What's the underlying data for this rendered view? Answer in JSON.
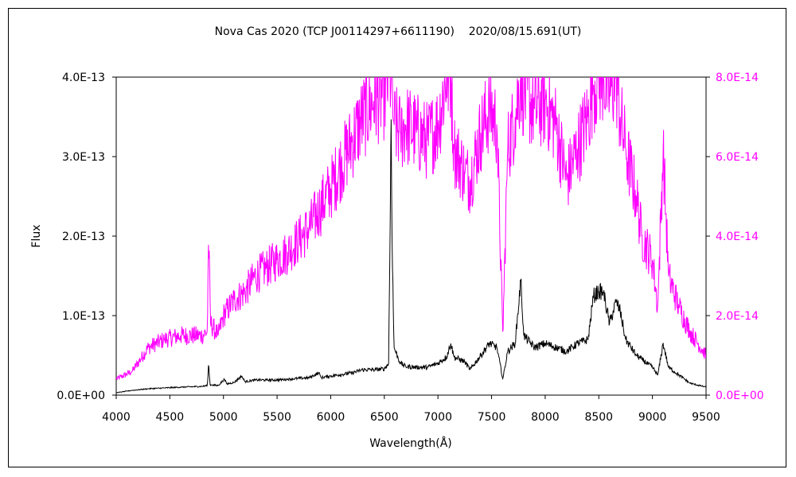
{
  "chart_data": {
    "type": "line",
    "title": "Nova Cas 2020 (TCP J00114297+6611190)    2020/08/15.691(UT)",
    "xlabel": "Wavelength(Å)",
    "ylabel": "Flux",
    "xlim": [
      4000,
      9500
    ],
    "ylim_left": [
      0,
      4e-13
    ],
    "ylim_right": [
      0,
      8e-14
    ],
    "x_ticks": [
      "4000",
      "4500",
      "5000",
      "5500",
      "6000",
      "6500",
      "7000",
      "7500",
      "8000",
      "8500",
      "9000",
      "9500"
    ],
    "y_ticks_left": [
      "0.0E+00",
      "1.0E-13",
      "2.0E-13",
      "3.0E-13",
      "4.0E-13"
    ],
    "y_ticks_right": [
      "0.0E+00",
      "2.0E-14",
      "4.0E-14",
      "6.0E-14",
      "8.0E-14"
    ],
    "grid": false,
    "legend": "none",
    "series": [
      {
        "axis": "left",
        "color": "#000000",
        "points": [
          [
            4000,
            3e-15
          ],
          [
            4150,
            6e-15
          ],
          [
            4300,
            8e-15
          ],
          [
            4450,
            9e-15
          ],
          [
            4600,
            1e-14
          ],
          [
            4800,
            1.1e-14
          ],
          [
            4850,
            1.2e-14
          ],
          [
            4861,
            4e-14
          ],
          [
            4875,
            1.3e-14
          ],
          [
            4950,
            1.2e-14
          ],
          [
            5010,
            2e-14
          ],
          [
            5030,
            1.4e-14
          ],
          [
            5100,
            1.6e-14
          ],
          [
            5170,
            2.4e-14
          ],
          [
            5200,
            1.7e-14
          ],
          [
            5300,
            1.9e-14
          ],
          [
            5400,
            1.9e-14
          ],
          [
            5500,
            1.9e-14
          ],
          [
            5600,
            2e-14
          ],
          [
            5700,
            2.1e-14
          ],
          [
            5800,
            2.2e-14
          ],
          [
            5890,
            2.8e-14
          ],
          [
            5910,
            2.2e-14
          ],
          [
            6000,
            2.4e-14
          ],
          [
            6100,
            2.6e-14
          ],
          [
            6200,
            2.8e-14
          ],
          [
            6300,
            3.2e-14
          ],
          [
            6400,
            3.2e-14
          ],
          [
            6500,
            3.3e-14
          ],
          [
            6540,
            4e-14
          ],
          [
            6555,
            2.2e-13
          ],
          [
            6563,
            3.65e-13
          ],
          [
            6572,
            2e-13
          ],
          [
            6590,
            6e-14
          ],
          [
            6650,
            4e-14
          ],
          [
            6700,
            3.6e-14
          ],
          [
            6800,
            3.5e-14
          ],
          [
            6900,
            3.5e-14
          ],
          [
            7000,
            4e-14
          ],
          [
            7080,
            4.8e-14
          ],
          [
            7120,
            6.5e-14
          ],
          [
            7150,
            4.8e-14
          ],
          [
            7250,
            4.2e-14
          ],
          [
            7300,
            3.2e-14
          ],
          [
            7400,
            5e-14
          ],
          [
            7480,
            6.5e-14
          ],
          [
            7550,
            6e-14
          ],
          [
            7605,
            2e-14
          ],
          [
            7650,
            5.5e-14
          ],
          [
            7720,
            6.5e-14
          ],
          [
            7773,
            1.45e-13
          ],
          [
            7800,
            7.5e-14
          ],
          [
            7900,
            6e-14
          ],
          [
            8000,
            6.5e-14
          ],
          [
            8100,
            6e-14
          ],
          [
            8200,
            5.5e-14
          ],
          [
            8300,
            6.5e-14
          ],
          [
            8400,
            7e-14
          ],
          [
            8450,
            1.25e-13
          ],
          [
            8498,
            1.3e-13
          ],
          [
            8542,
            1.3e-13
          ],
          [
            8600,
            9e-14
          ],
          [
            8662,
            1.18e-13
          ],
          [
            8700,
            1.05e-13
          ],
          [
            8750,
            7e-14
          ],
          [
            8850,
            5e-14
          ],
          [
            8900,
            4.5e-14
          ],
          [
            9000,
            3.5e-14
          ],
          [
            9050,
            2.5e-14
          ],
          [
            9100,
            6.5e-14
          ],
          [
            9150,
            3.5e-14
          ],
          [
            9250,
            2.5e-14
          ],
          [
            9350,
            1.5e-14
          ],
          [
            9500,
            1e-14
          ]
        ]
      },
      {
        "axis": "right",
        "color": "#ff00ff",
        "points": [
          [
            4000,
            4e-15
          ],
          [
            4150,
            6e-15
          ],
          [
            4300,
            1.2e-14
          ],
          [
            4450,
            1.4e-14
          ],
          [
            4600,
            1.5e-14
          ],
          [
            4800,
            1.5e-14
          ],
          [
            4850,
            1.6e-14
          ],
          [
            4861,
            4e-14
          ],
          [
            4880,
            1.8e-14
          ],
          [
            4950,
            1.5e-14
          ],
          [
            5000,
            2e-14
          ],
          [
            5100,
            2.4e-14
          ],
          [
            5200,
            2.6e-14
          ],
          [
            5300,
            3e-14
          ],
          [
            5400,
            3.2e-14
          ],
          [
            5500,
            3.4e-14
          ],
          [
            5600,
            3.6e-14
          ],
          [
            5700,
            3.9e-14
          ],
          [
            5800,
            4.2e-14
          ],
          [
            5900,
            4.7e-14
          ],
          [
            6000,
            5.2e-14
          ],
          [
            6100,
            5.8e-14
          ],
          [
            6200,
            6.4e-14
          ],
          [
            6300,
            7e-14
          ],
          [
            6400,
            7.4e-14
          ],
          [
            6500,
            7.6e-14
          ],
          [
            6540,
            8e-14
          ],
          [
            6563,
            8e-14
          ],
          [
            6590,
            6.8e-14
          ],
          [
            6650,
            6.6e-14
          ],
          [
            6700,
            6.8e-14
          ],
          [
            6800,
            6.6e-14
          ],
          [
            6900,
            6.4e-14
          ],
          [
            7000,
            6.8e-14
          ],
          [
            7080,
            8e-14
          ],
          [
            7120,
            8e-14
          ],
          [
            7150,
            6.2e-14
          ],
          [
            7250,
            5.6e-14
          ],
          [
            7300,
            5.4e-14
          ],
          [
            7400,
            6.6e-14
          ],
          [
            7480,
            7.2e-14
          ],
          [
            7550,
            6.8e-14
          ],
          [
            7605,
            1.5e-14
          ],
          [
            7650,
            6.2e-14
          ],
          [
            7720,
            7e-14
          ],
          [
            7773,
            8e-14
          ],
          [
            7800,
            7.6e-14
          ],
          [
            7900,
            7.2e-14
          ],
          [
            8000,
            7.4e-14
          ],
          [
            8100,
            6.8e-14
          ],
          [
            8200,
            5.4e-14
          ],
          [
            8300,
            6.2e-14
          ],
          [
            8400,
            7e-14
          ],
          [
            8450,
            7.8e-14
          ],
          [
            8498,
            8e-14
          ],
          [
            8542,
            8e-14
          ],
          [
            8600,
            7.6e-14
          ],
          [
            8662,
            8e-14
          ],
          [
            8700,
            7e-14
          ],
          [
            8750,
            6.2e-14
          ],
          [
            8850,
            5e-14
          ],
          [
            8900,
            4e-14
          ],
          [
            9000,
            3.4e-14
          ],
          [
            9050,
            2.2e-14
          ],
          [
            9100,
            6.2e-14
          ],
          [
            9150,
            3e-14
          ],
          [
            9250,
            2.2e-14
          ],
          [
            9350,
            1.6e-14
          ],
          [
            9500,
            1e-14
          ]
        ]
      }
    ]
  }
}
